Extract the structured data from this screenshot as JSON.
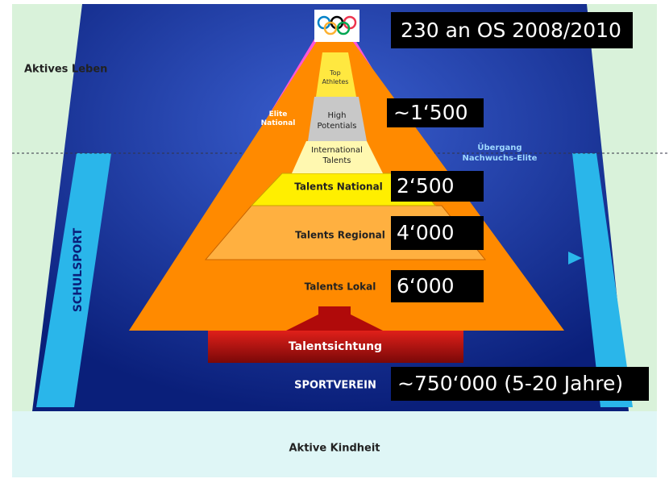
{
  "labels": {
    "aktives_leben": "Aktives Leben",
    "elite_national": [
      "Elite",
      "National"
    ],
    "top_athletes": [
      "Top",
      "Athletes"
    ],
    "high_potentials": [
      "High",
      "Potentials"
    ],
    "international_talents": [
      "International",
      "Talents"
    ],
    "talents_national": "Talents National",
    "talents_regional": "Talents Regional",
    "talents_lokal": "Talents Lokal",
    "talentsichtung": "Talentsichtung",
    "sportverein": "SPORTVEREIN",
    "schulsport": "SCHULSPORT",
    "uebergang": [
      "Übergang",
      "Nachwuchs-Elite"
    ],
    "aktive_kindheit": "Aktive Kindheit"
  },
  "counts": {
    "olympics": "230 an OS 2008/2010",
    "high_potentials": "~1‘500",
    "national": "2‘500",
    "regional": "4‘000",
    "lokal": "6‘000",
    "sportverein": "~750‘000 (5-20 Jahre)"
  }
}
